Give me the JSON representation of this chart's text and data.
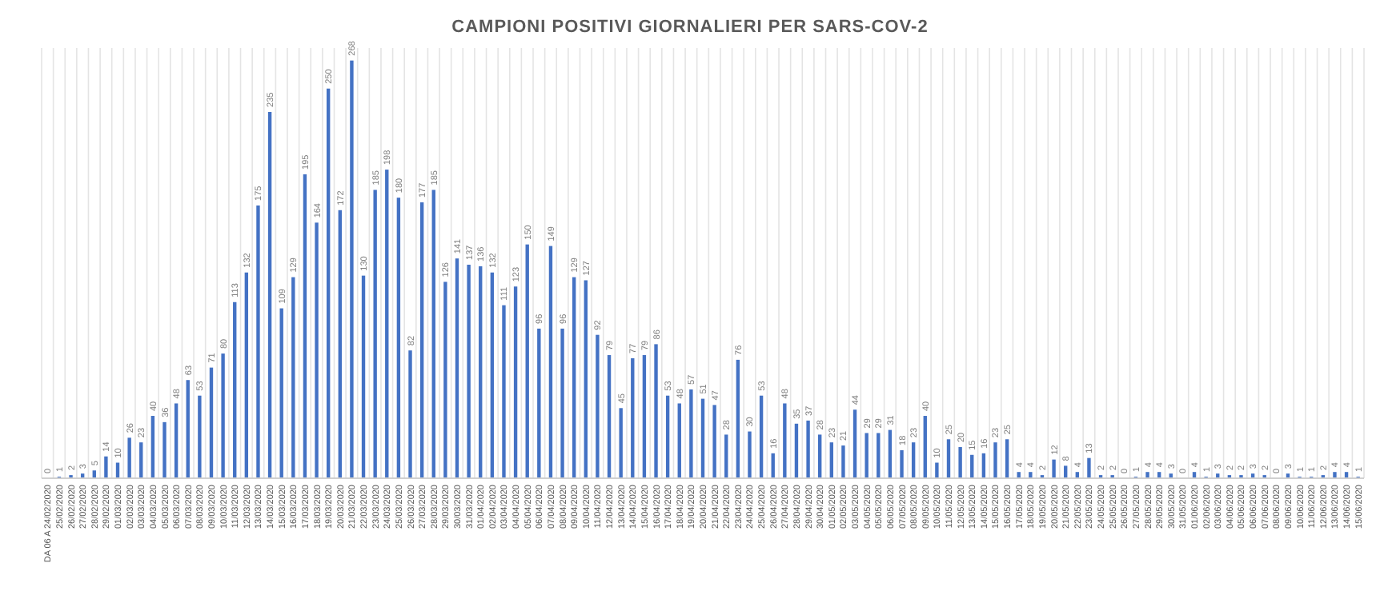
{
  "chart_data": {
    "type": "bar",
    "title": "CAMPIONI POSITIVI GIORNALIERI PER SARS-COV-2",
    "categories": [
      "DA 06 A 24/02/2020",
      "25/02/2020",
      "26/02/2020",
      "27/02/2020",
      "28/02/2020",
      "29/02/2020",
      "01/03/2020",
      "02/03/2020",
      "03/03/2020",
      "04/03/2020",
      "05/03/2020",
      "06/03/2020",
      "07/03/2020",
      "08/03/2020",
      "09/03/2020",
      "10/03/2020",
      "11/03/2020",
      "12/03/2020",
      "13/03/2020",
      "14/03/2020",
      "15/03/2020",
      "16/03/2020",
      "17/03/2020",
      "18/03/2020",
      "19/03/2020",
      "20/03/2020",
      "21/03/2020",
      "22/03/2020",
      "23/03/2020",
      "24/03/2020",
      "25/03/2020",
      "26/03/2020",
      "27/03/2020",
      "28/03/2020",
      "29/03/2020",
      "30/03/2020",
      "31/03/2020",
      "01/04/2020",
      "02/04/2020",
      "03/04/2020",
      "04/04/2020",
      "05/04/2020",
      "06/04/2020",
      "07/04/2020",
      "08/04/2020",
      "09/04/2020",
      "10/04/2020",
      "11/04/2020",
      "12/04/2020",
      "13/04/2020",
      "14/04/2020",
      "15/04/2020",
      "16/04/2020",
      "17/04/2020",
      "18/04/2020",
      "19/04/2020",
      "20/04/2020",
      "21/04/2020",
      "22/04/2020",
      "23/04/2020",
      "24/04/2020",
      "25/04/2020",
      "26/04/2020",
      "27/04/2020",
      "28/04/2020",
      "29/04/2020",
      "30/04/2020",
      "01/05/2020",
      "02/05/2020",
      "03/05/2020",
      "04/05/2020",
      "05/05/2020",
      "06/05/2020",
      "07/05/2020",
      "08/05/2020",
      "09/05/2020",
      "10/05/2020",
      "11/05/2020",
      "12/05/2020",
      "13/05/2020",
      "14/05/2020",
      "15/05/2020",
      "16/05/2020",
      "17/05/2020",
      "18/05/2020",
      "19/05/2020",
      "20/05/2020",
      "21/05/2020",
      "22/05/2020",
      "23/05/2020",
      "24/05/2020",
      "25/05/2020",
      "26/05/2020",
      "27/05/2020",
      "28/05/2020",
      "29/05/2020",
      "30/05/2020",
      "31/05/2020",
      "01/06/2020",
      "02/06/2020",
      "03/06/2020",
      "04/06/2020",
      "05/06/2020",
      "06/06/2020",
      "07/06/2020",
      "08/06/2020",
      "09/06/2020",
      "10/06/2020",
      "11/06/2020",
      "12/06/2020",
      "13/06/2020",
      "14/06/2020",
      "15/06/2020"
    ],
    "values": [
      0,
      1,
      2,
      3,
      5,
      14,
      10,
      26,
      23,
      40,
      36,
      48,
      63,
      53,
      71,
      80,
      113,
      132,
      175,
      235,
      109,
      129,
      195,
      164,
      250,
      172,
      268,
      130,
      185,
      198,
      180,
      82,
      177,
      185,
      126,
      141,
      137,
      136,
      132,
      111,
      123,
      150,
      96,
      149,
      96,
      129,
      127,
      92,
      79,
      45,
      77,
      79,
      86,
      53,
      48,
      57,
      51,
      47,
      28,
      76,
      30,
      53,
      16,
      48,
      35,
      37,
      28,
      23,
      21,
      44,
      29,
      29,
      31,
      18,
      23,
      40,
      10,
      25,
      20,
      15,
      16,
      23,
      25,
      4,
      4,
      2,
      12,
      8,
      4,
      13,
      2,
      2,
      0,
      1,
      4,
      4,
      3,
      0,
      4,
      1,
      3,
      2,
      2,
      3,
      2,
      0,
      3,
      1,
      1,
      2,
      4,
      4,
      1
    ],
    "color": "#4472c4",
    "data_labels": true,
    "grid": "x"
  }
}
